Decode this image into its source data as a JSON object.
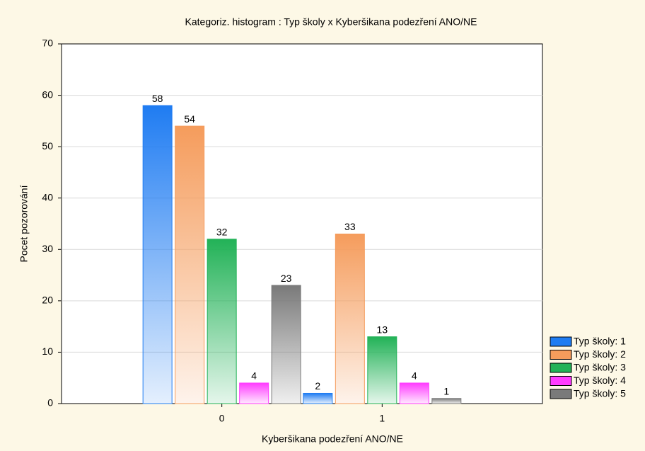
{
  "chart_data": {
    "type": "bar",
    "title": "Kategoriz. histogram : Typ školy x Kyberšikana podezření ANO/NE",
    "x_label": "Kyberšikana podezření ANO/NE",
    "y_label": "Pocet pozorování",
    "categories": [
      "0",
      "1"
    ],
    "series": [
      {
        "name": "Typ školy: 1",
        "color": "#1f7cf2",
        "values": [
          58,
          2
        ]
      },
      {
        "name": "Typ školy: 2",
        "color": "#f59c5c",
        "values": [
          54,
          33
        ]
      },
      {
        "name": "Typ školy: 3",
        "color": "#22b257",
        "values": [
          32,
          13
        ]
      },
      {
        "name": "Typ školy: 4",
        "color": "#ff3cff",
        "values": [
          4,
          4
        ]
      },
      {
        "name": "Typ školy: 5",
        "color": "#7a7a7a",
        "values": [
          23,
          1
        ]
      }
    ],
    "ylim": [
      0,
      70
    ],
    "yticks": [
      0,
      10,
      20,
      30,
      40,
      50,
      60,
      70
    ],
    "grid": true,
    "legend": "lower right"
  }
}
